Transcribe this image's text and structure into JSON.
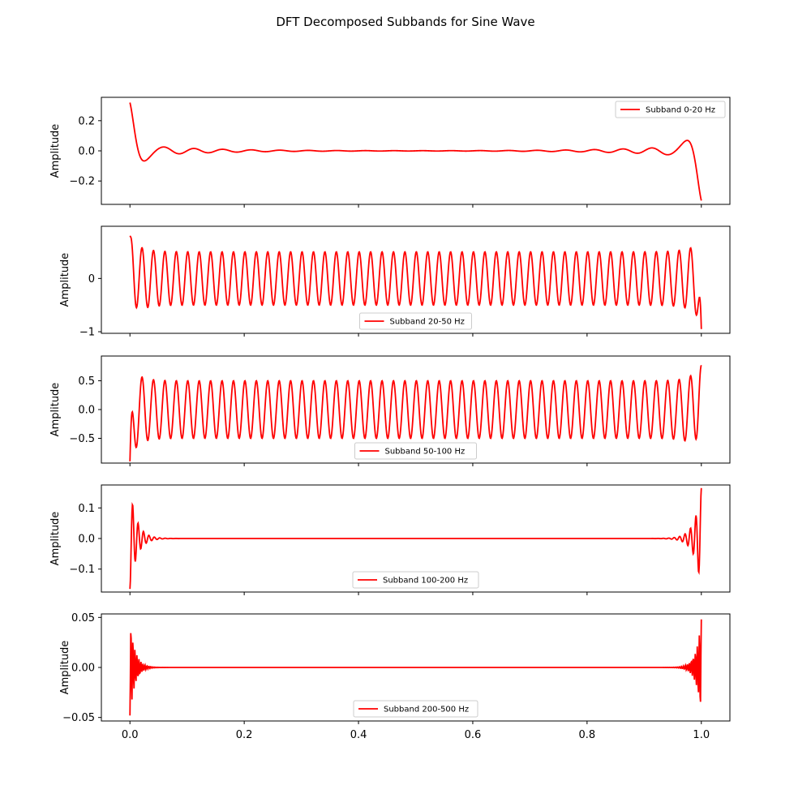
{
  "title": "DFT Decomposed Subbands for Sine Wave",
  "line_color": "#ff0000",
  "chart_data": [
    {
      "type": "line",
      "legend": "Subband 0-20 Hz",
      "legend_placement": "upper right",
      "ylabel": "Amplitude",
      "xlim": [
        -0.05,
        1.05
      ],
      "ylim": [
        -0.355,
        0.355
      ],
      "yticks": [
        -0.2,
        0.0,
        0.2
      ],
      "ytick_labels": [
        "−0.2",
        "0.0",
        "0.2"
      ],
      "xticks": [
        0.0,
        0.2,
        0.4,
        0.6,
        0.8,
        1.0
      ],
      "series": [
        {
          "name": "Subband 0-20 Hz",
          "shape": {
            "carrier_hz": 20,
            "steady_amp": 0.0,
            "start_value": 0.32,
            "end_value": -0.33,
            "ripple_amp": 0.2,
            "ripple_decay": 0.03,
            "ripple_period": 0.05
          }
        }
      ]
    },
    {
      "type": "line",
      "legend": "Subband 20-50 Hz",
      "legend_placement": "lower center",
      "ylabel": "Amplitude",
      "xlim": [
        -0.05,
        1.05
      ],
      "ylim": [
        -1.03,
        0.98
      ],
      "yticks": [
        -1,
        0
      ],
      "ytick_labels": [
        "−1",
        "0"
      ],
      "xticks": [
        0.0,
        0.2,
        0.4,
        0.6,
        0.8,
        1.0
      ],
      "series": [
        {
          "name": "Subband 20-50 Hz",
          "shape": {
            "carrier_hz": 50,
            "steady_amp": 0.5,
            "start_value": 0.8,
            "end_value": -0.95,
            "edge_gain": 0.5,
            "edge_decay": 0.018
          }
        }
      ]
    },
    {
      "type": "line",
      "legend": "Subband 50-100 Hz",
      "legend_placement": "lower center",
      "ylabel": "Amplitude",
      "xlim": [
        -0.05,
        1.05
      ],
      "ylim": [
        -0.93,
        0.93
      ],
      "yticks": [
        -0.5,
        0.0,
        0.5
      ],
      "ytick_labels": [
        "−0.5",
        "0.0",
        "0.5"
      ],
      "xticks": [
        0.0,
        0.2,
        0.4,
        0.6,
        0.8,
        1.0
      ],
      "series": [
        {
          "name": "Subband 50-100 Hz",
          "shape": {
            "carrier_hz": 50,
            "steady_amp": 0.5,
            "start_value": -0.9,
            "end_value": 0.77,
            "edge_gain": 0.6,
            "edge_decay": 0.015
          }
        }
      ]
    },
    {
      "type": "line",
      "legend": "Subband 100-200 Hz",
      "legend_placement": "lower center",
      "ylabel": "Amplitude",
      "xlim": [
        -0.05,
        1.05
      ],
      "ylim": [
        -0.175,
        0.175
      ],
      "yticks": [
        -0.1,
        0.0,
        0.1
      ],
      "ytick_labels": [
        "−0.1",
        "0.0",
        "0.1"
      ],
      "xticks": [
        0.0,
        0.2,
        0.4,
        0.6,
        0.8,
        1.0
      ],
      "series": [
        {
          "name": "Subband 100-200 Hz",
          "shape": {
            "carrier_hz": 0,
            "steady_amp": 0.0,
            "start_value": -0.165,
            "end_value": 0.165,
            "ripple_amp": 0.14,
            "ripple_decay": 0.012,
            "ripple_period": 0.0095
          }
        }
      ]
    },
    {
      "type": "line",
      "legend": "Subband 200-500 Hz",
      "legend_placement": "lower center",
      "ylabel": "Amplitude",
      "xlim": [
        -0.05,
        1.05
      ],
      "ylim": [
        -0.0535,
        0.0535
      ],
      "yticks": [
        -0.05,
        0.0,
        0.05
      ],
      "ytick_labels": [
        "−0.05",
        "0.00",
        "0.05"
      ],
      "xticks": [
        0.0,
        0.2,
        0.4,
        0.6,
        0.8,
        1.0
      ],
      "xtick_labels": [
        "0.0",
        "0.2",
        "0.4",
        "0.6",
        "0.8",
        "1.0"
      ],
      "series": [
        {
          "name": "Subband 200-500 Hz",
          "shape": {
            "carrier_hz": 0,
            "steady_amp": 0.0,
            "start_value": -0.048,
            "end_value": 0.048,
            "ripple_amp": 0.045,
            "ripple_decay": 0.009,
            "ripple_period": 0.0035
          }
        }
      ]
    }
  ]
}
